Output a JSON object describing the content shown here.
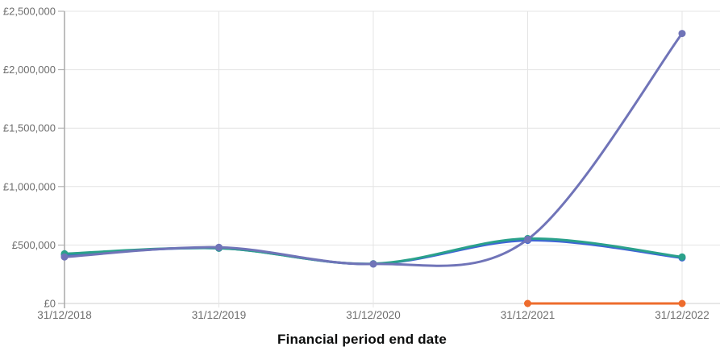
{
  "chart_data": {
    "type": "line",
    "title": "",
    "xlabel": "Financial period end date",
    "ylabel": "",
    "x_tick_labels": [
      "31/12/2018",
      "31/12/2019",
      "31/12/2020",
      "31/12/2021",
      "31/12/2022"
    ],
    "y_ticks": [
      0,
      500000,
      1000000,
      1500000,
      2000000,
      2500000
    ],
    "y_tick_labels": [
      "£0",
      "£500,000",
      "£1,000,000",
      "£1,500,000",
      "£2,000,000",
      "£2,500,000"
    ],
    "ylim": [
      0,
      2500000
    ],
    "grid": true,
    "legend": "none",
    "curve": "smooth",
    "series": [
      {
        "name": "blue-series",
        "color": "#3f66d4",
        "values": [
          415000,
          473000,
          338000,
          540000,
          390000
        ]
      },
      {
        "name": "teal-series",
        "color": "#2aa18b",
        "values": [
          425000,
          473000,
          340000,
          555000,
          398000
        ]
      },
      {
        "name": "purple-series",
        "color": "#7074b8",
        "values": [
          398000,
          480000,
          338000,
          548000,
          2310000
        ]
      },
      {
        "name": "orange-series",
        "color": "#ee6c2d",
        "values": [
          null,
          null,
          null,
          0,
          0
        ]
      }
    ]
  },
  "style": {
    "grid_color": "#e4e4e4",
    "zero_axis_color": "#cfcfcf",
    "axis_color": "#a9a9a9",
    "tick_label_color": "#6e6e6e",
    "title_color": "#0b0c0c"
  }
}
